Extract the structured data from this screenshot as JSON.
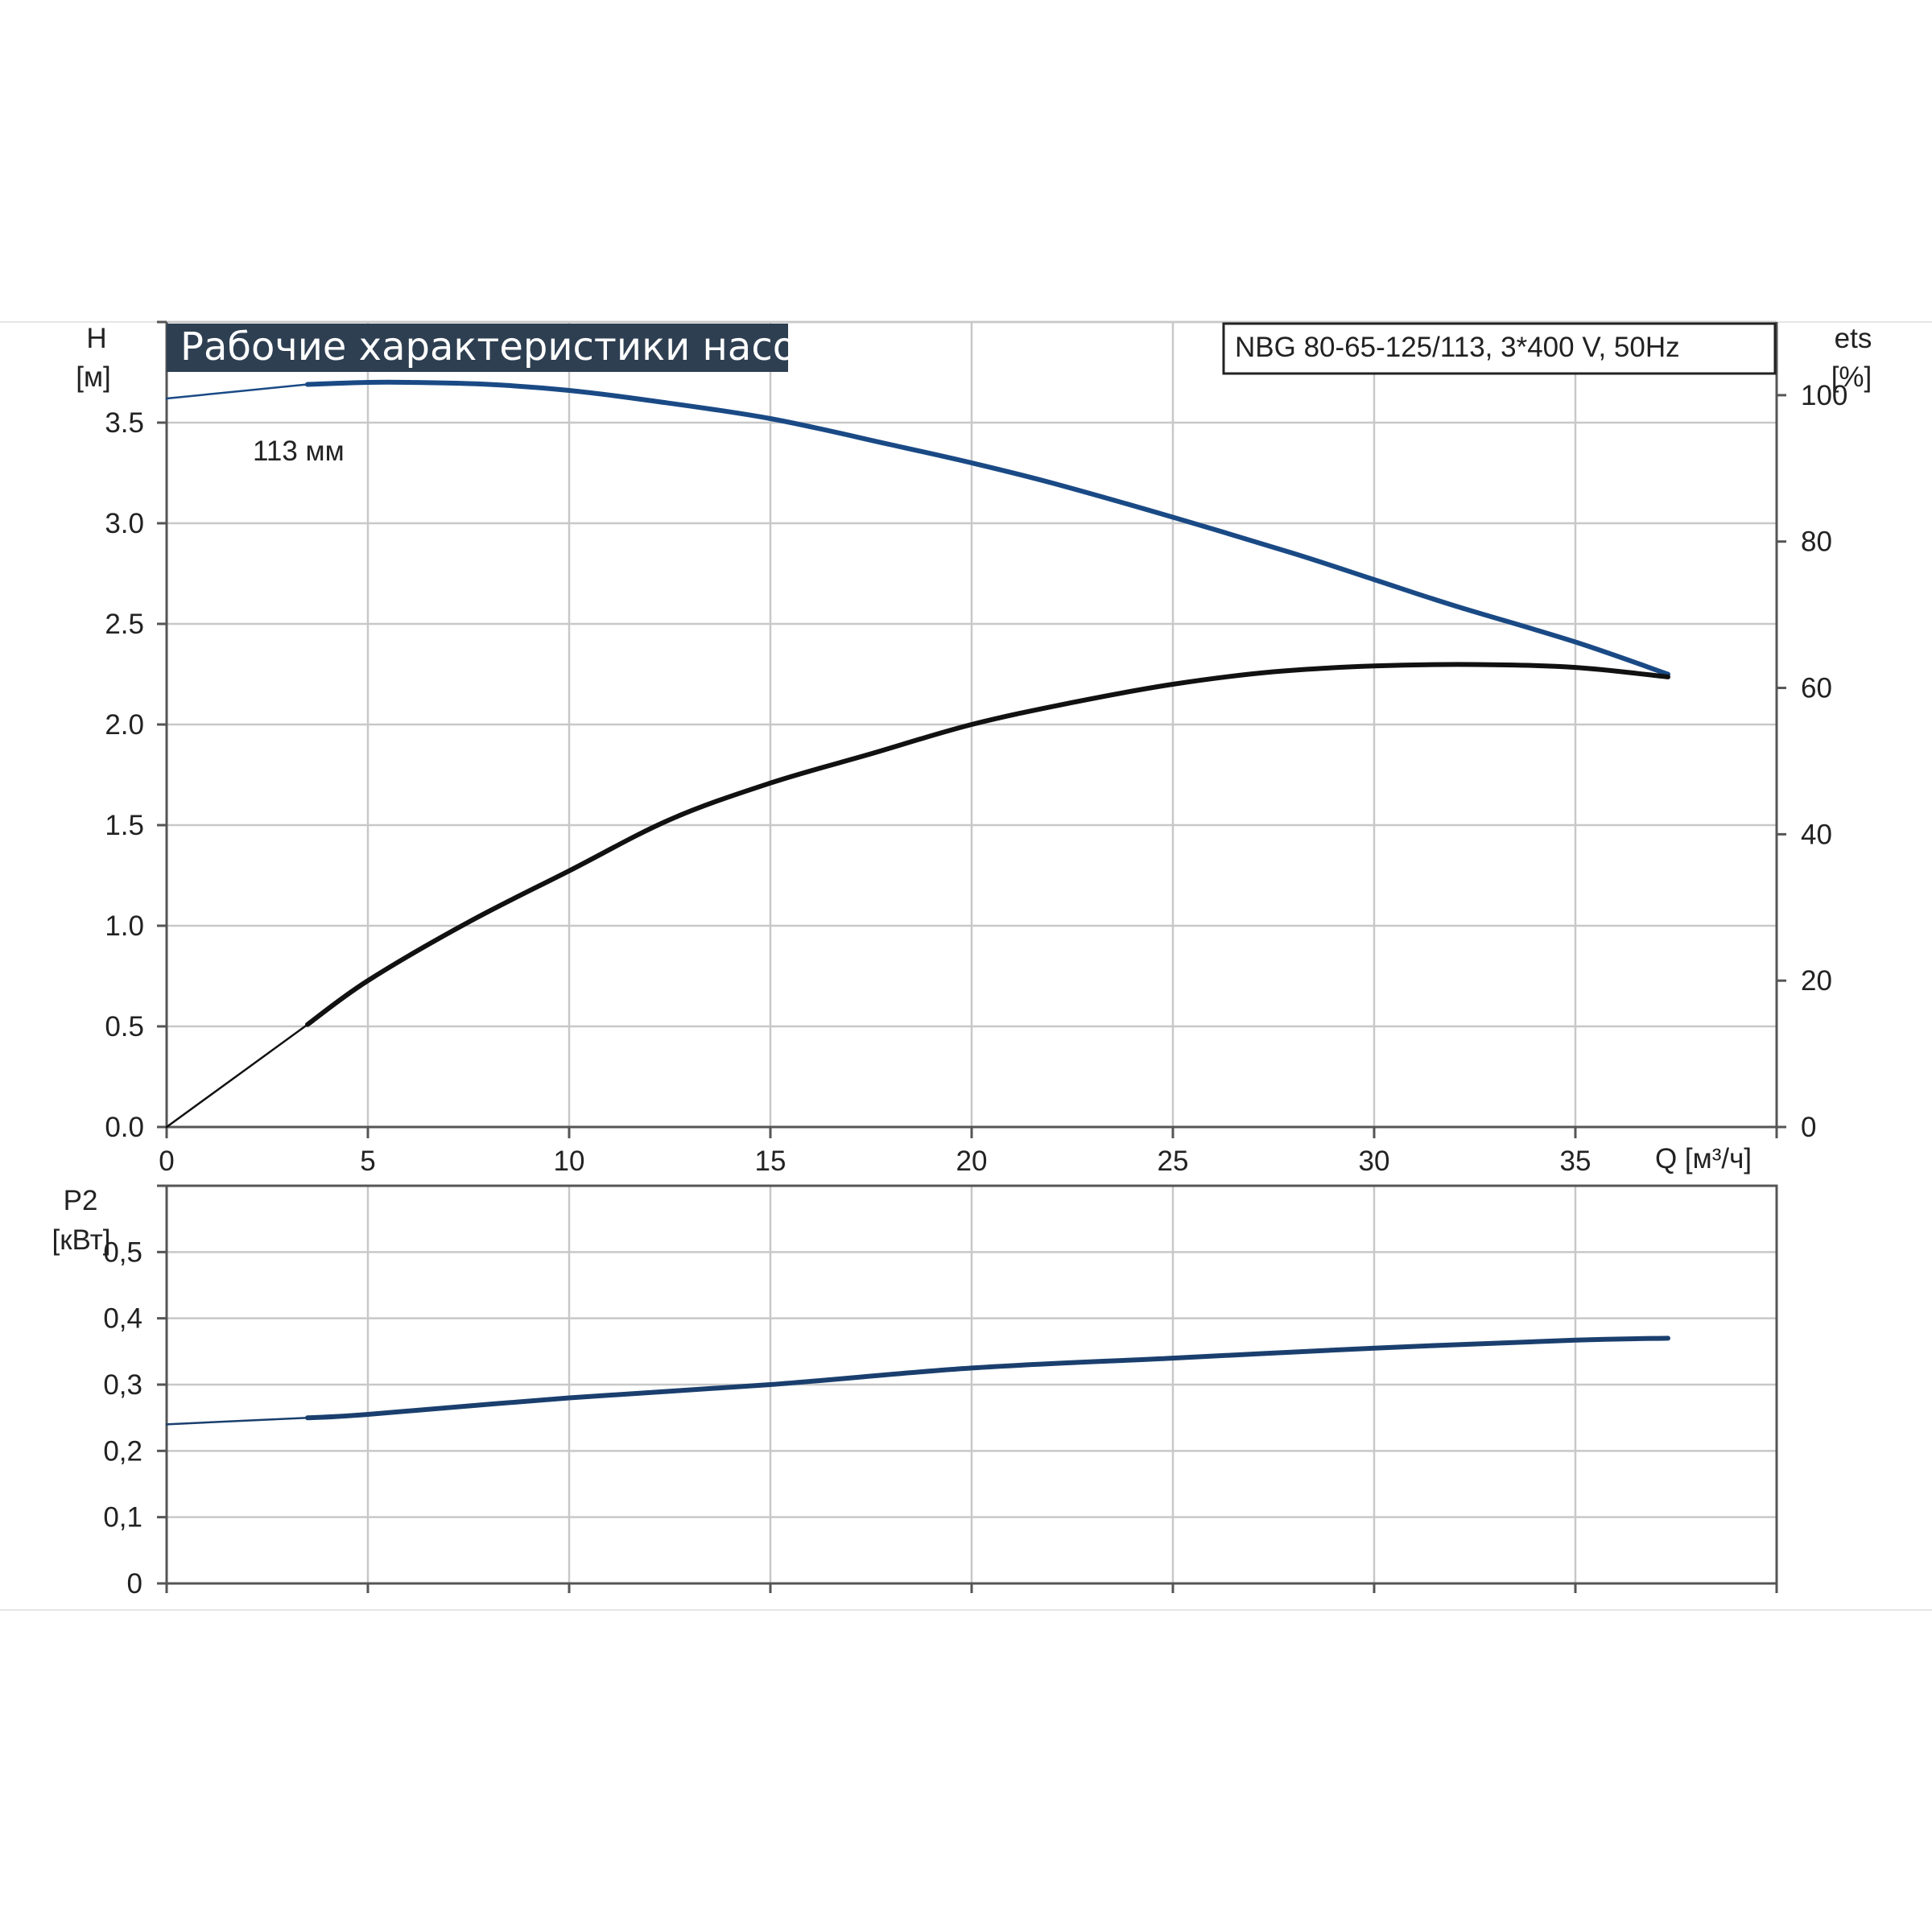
{
  "title": "Рабочие характеристики насоса",
  "model": "NBG 80-65-125/113, 3*400 V, 50Hz",
  "colors": {
    "title_bg": "#2f3f52",
    "head_curve": "#1a4a85",
    "eff_curve": "#111111",
    "power_curve": "#1a3f6e"
  },
  "chart_data": [
    {
      "type": "line",
      "xlabel": "Q [м³/ч]",
      "x_ticks": [
        "0",
        "5",
        "10",
        "15",
        "20",
        "25",
        "30",
        "35"
      ],
      "xlim": [
        0,
        40
      ],
      "grid": true,
      "ylabel_left": [
        "H",
        "[м]"
      ],
      "y_ticks_left": [
        "0.0",
        "0.5",
        "1.0",
        "1.5",
        "2.0",
        "2.5",
        "3.0",
        "3.5"
      ],
      "ylim_left": [
        0,
        4.0
      ],
      "ylabel_right": [
        "ets",
        "[%]"
      ],
      "y_ticks_right": [
        "0",
        "20",
        "40",
        "60",
        "80",
        "100"
      ],
      "ylim_right": [
        0,
        110
      ],
      "annotation": "113 мм",
      "series": [
        {
          "axis": "left",
          "x": [
            0,
            3.5,
            5,
            6,
            8,
            10,
            12,
            15,
            18,
            20,
            22,
            25,
            28,
            30,
            32,
            35,
            37.3
          ],
          "values": [
            3.62,
            3.69,
            3.7,
            3.7,
            3.69,
            3.66,
            3.61,
            3.52,
            3.39,
            3.3,
            3.2,
            3.03,
            2.85,
            2.72,
            2.59,
            2.41,
            2.25
          ]
        },
        {
          "axis": "right",
          "x": [
            0,
            3.5,
            5,
            7.5,
            10,
            12.5,
            15,
            17.5,
            20,
            22.5,
            25,
            27.5,
            30,
            32.5,
            35,
            37.3
          ],
          "values": [
            0,
            14,
            20,
            28,
            35,
            42,
            47,
            51,
            55,
            58,
            60.5,
            62.2,
            63,
            63.2,
            62.8,
            61.5
          ]
        }
      ]
    },
    {
      "type": "line",
      "ylabel": [
        "P2",
        "[кВт]"
      ],
      "y_ticks": [
        "0",
        "0,1",
        "0,2",
        "0,3",
        "0,4",
        "0,5"
      ],
      "ylim": [
        0,
        0.6
      ],
      "xlim": [
        0,
        40
      ],
      "grid": true,
      "series": [
        {
          "x": [
            0,
            3.5,
            5,
            10,
            15,
            20,
            25,
            30,
            35,
            37.3
          ],
          "values": [
            0.24,
            0.25,
            0.255,
            0.28,
            0.3,
            0.325,
            0.34,
            0.355,
            0.367,
            0.37
          ]
        }
      ]
    }
  ]
}
